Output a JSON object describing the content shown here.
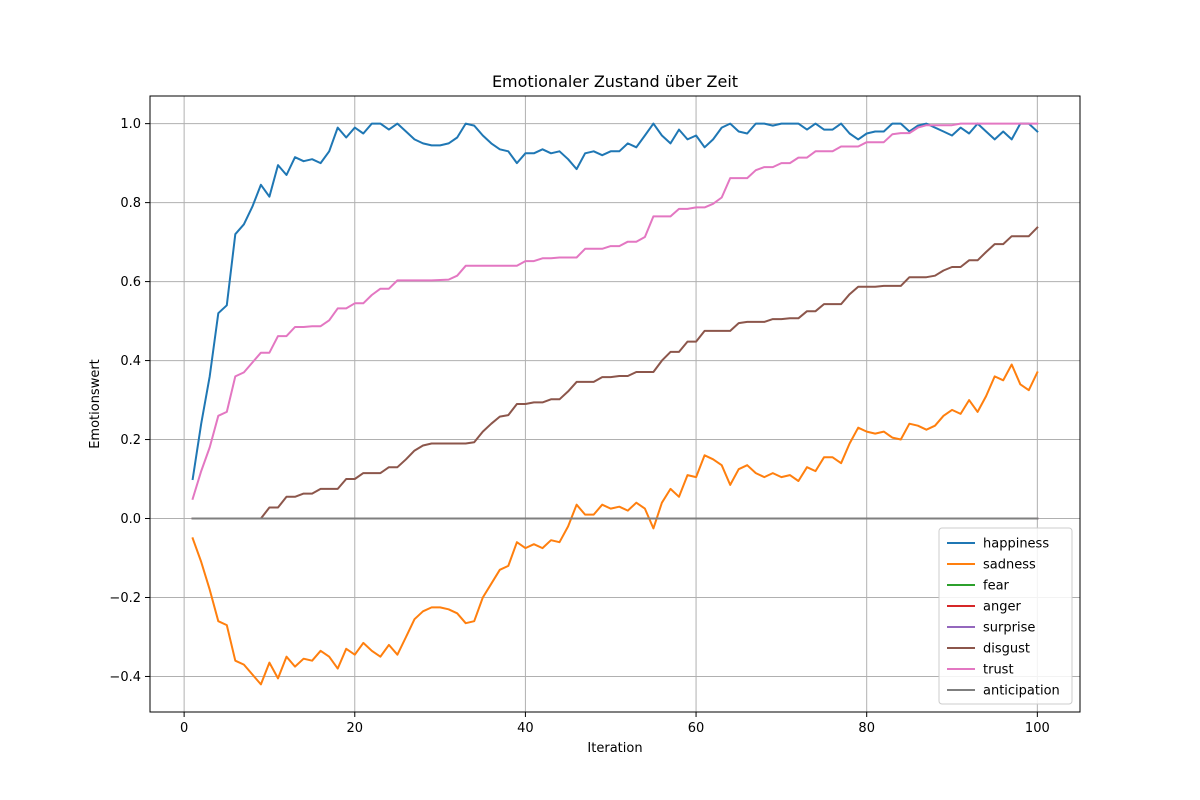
{
  "chart_data": {
    "type": "line",
    "title": "Emotionaler Zustand über Zeit",
    "xlabel": "Iteration",
    "ylabel": "Emotionswert",
    "xlim": [
      -4,
      105
    ],
    "ylim": [
      -0.49,
      1.07
    ],
    "xticks": [
      0,
      20,
      40,
      60,
      80,
      100
    ],
    "yticks": [
      -0.4,
      -0.2,
      0.0,
      0.2,
      0.4,
      0.6,
      0.8,
      1.0
    ],
    "xtick_labels": [
      "0",
      "20",
      "40",
      "60",
      "80",
      "100"
    ],
    "ytick_labels": [
      "−0.4",
      "−0.2",
      "0.0",
      "0.2",
      "0.4",
      "0.6",
      "0.8",
      "1.0"
    ],
    "grid": true,
    "legend_position": "lower-right",
    "series": [
      {
        "name": "happiness",
        "color": "#1f77b4",
        "values": [
          0.1,
          0.24,
          0.36,
          0.52,
          0.54,
          0.72,
          0.745,
          0.79,
          0.845,
          0.815,
          0.895,
          0.87,
          0.915,
          0.905,
          0.91,
          0.9,
          0.93,
          0.99,
          0.965,
          0.99,
          0.975,
          1.0,
          1.0,
          0.985,
          1.0,
          0.98,
          0.96,
          0.95,
          0.945,
          0.945,
          0.95,
          0.965,
          1.0,
          0.995,
          0.97,
          0.95,
          0.935,
          0.93,
          0.9,
          0.925,
          0.925,
          0.935,
          0.925,
          0.93,
          0.91,
          0.885,
          0.925,
          0.93,
          0.92,
          0.93,
          0.93,
          0.95,
          0.94,
          0.97,
          1.0,
          0.97,
          0.95,
          0.985,
          0.96,
          0.97,
          0.94,
          0.96,
          0.99,
          1.0,
          0.98,
          0.975,
          1.0,
          1.0,
          0.995,
          1.0,
          1.0,
          1.0,
          0.985,
          1.0,
          0.985,
          0.985,
          1.0,
          0.975,
          0.96,
          0.975,
          0.98,
          0.98,
          1.0,
          1.0,
          0.98,
          0.995,
          1.0,
          0.99,
          0.98,
          0.97,
          0.99,
          0.975,
          1.0,
          0.98,
          0.96,
          0.98,
          0.96,
          1.0,
          1.0,
          0.98
        ]
      },
      {
        "name": "sadness",
        "color": "#ff7f0e",
        "values": [
          -0.05,
          -0.11,
          -0.18,
          -0.26,
          -0.27,
          -0.36,
          -0.37,
          -0.395,
          -0.42,
          -0.365,
          -0.405,
          -0.35,
          -0.375,
          -0.355,
          -0.36,
          -0.335,
          -0.35,
          -0.38,
          -0.33,
          -0.345,
          -0.315,
          -0.335,
          -0.35,
          -0.32,
          -0.345,
          -0.3,
          -0.255,
          -0.235,
          -0.225,
          -0.225,
          -0.23,
          -0.24,
          -0.265,
          -0.26,
          -0.2,
          -0.165,
          -0.13,
          -0.12,
          -0.06,
          -0.075,
          -0.065,
          -0.075,
          -0.055,
          -0.06,
          -0.02,
          0.035,
          0.01,
          0.01,
          0.035,
          0.025,
          0.03,
          0.02,
          0.04,
          0.025,
          -0.025,
          0.04,
          0.075,
          0.055,
          0.11,
          0.105,
          0.16,
          0.15,
          0.135,
          0.085,
          0.125,
          0.135,
          0.115,
          0.105,
          0.115,
          0.105,
          0.11,
          0.095,
          0.13,
          0.12,
          0.155,
          0.155,
          0.14,
          0.19,
          0.23,
          0.22,
          0.215,
          0.22,
          0.205,
          0.2,
          0.24,
          0.235,
          0.225,
          0.235,
          0.26,
          0.275,
          0.265,
          0.3,
          0.27,
          0.31,
          0.36,
          0.35,
          0.39,
          0.34,
          0.325,
          0.37
        ]
      },
      {
        "name": "fear",
        "color": "#2ca02c",
        "values": [
          0,
          0,
          0,
          0,
          0,
          0,
          0,
          0,
          0,
          0,
          0,
          0,
          0,
          0,
          0,
          0,
          0,
          0,
          0,
          0,
          0,
          0,
          0,
          0,
          0,
          0,
          0,
          0,
          0,
          0,
          0,
          0,
          0,
          0,
          0,
          0,
          0,
          0,
          0,
          0,
          0,
          0,
          0,
          0,
          0,
          0,
          0,
          0,
          0,
          0,
          0,
          0,
          0,
          0,
          0,
          0,
          0,
          0,
          0,
          0,
          0,
          0,
          0,
          0,
          0,
          0,
          0,
          0,
          0,
          0,
          0,
          0,
          0,
          0,
          0,
          0,
          0,
          0,
          0,
          0,
          0,
          0,
          0,
          0,
          0,
          0,
          0,
          0,
          0,
          0,
          0,
          0,
          0,
          0,
          0,
          0,
          0,
          0,
          0,
          0
        ]
      },
      {
        "name": "anger",
        "color": "#d62728",
        "values": [
          0,
          0,
          0,
          0,
          0,
          0,
          0,
          0,
          0,
          0,
          0,
          0,
          0,
          0,
          0,
          0,
          0,
          0,
          0,
          0,
          0,
          0,
          0,
          0,
          0,
          0,
          0,
          0,
          0,
          0,
          0,
          0,
          0,
          0,
          0,
          0,
          0,
          0,
          0,
          0,
          0,
          0,
          0,
          0,
          0,
          0,
          0,
          0,
          0,
          0,
          0,
          0,
          0,
          0,
          0,
          0,
          0,
          0,
          0,
          0,
          0,
          0,
          0,
          0,
          0,
          0,
          0,
          0,
          0,
          0,
          0,
          0,
          0,
          0,
          0,
          0,
          0,
          0,
          0,
          0,
          0,
          0,
          0,
          0,
          0,
          0,
          0,
          0,
          0,
          0,
          0,
          0,
          0,
          0,
          0,
          0,
          0,
          0,
          0,
          0
        ]
      },
      {
        "name": "surprise",
        "color": "#9467bd",
        "values": [
          0,
          0,
          0,
          0,
          0,
          0,
          0,
          0,
          0,
          0,
          0,
          0,
          0,
          0,
          0,
          0,
          0,
          0,
          0,
          0,
          0,
          0,
          0,
          0,
          0,
          0,
          0,
          0,
          0,
          0,
          0,
          0,
          0,
          0,
          0,
          0,
          0,
          0,
          0,
          0,
          0,
          0,
          0,
          0,
          0,
          0,
          0,
          0,
          0,
          0,
          0,
          0,
          0,
          0,
          0,
          0,
          0,
          0,
          0,
          0,
          0,
          0,
          0,
          0,
          0,
          0,
          0,
          0,
          0,
          0,
          0,
          0,
          0,
          0,
          0,
          0,
          0,
          0,
          0,
          0,
          0,
          0,
          0,
          0,
          0,
          0,
          0,
          0,
          0,
          0,
          0,
          0,
          0,
          0,
          0,
          0,
          0,
          0,
          0,
          0
        ]
      },
      {
        "name": "disgust",
        "color": "#8c564b",
        "values": [
          0,
          0,
          0,
          0,
          0,
          0,
          0,
          0,
          0,
          0.028,
          0.028,
          0.055,
          0.055,
          0.063,
          0.063,
          0.075,
          0.075,
          0.075,
          0.1,
          0.1,
          0.115,
          0.115,
          0.115,
          0.13,
          0.13,
          0.15,
          0.172,
          0.185,
          0.19,
          0.19,
          0.19,
          0.19,
          0.19,
          0.193,
          0.22,
          0.24,
          0.258,
          0.262,
          0.29,
          0.29,
          0.294,
          0.294,
          0.302,
          0.302,
          0.322,
          0.346,
          0.346,
          0.346,
          0.358,
          0.358,
          0.361,
          0.361,
          0.371,
          0.371,
          0.371,
          0.4,
          0.422,
          0.422,
          0.448,
          0.448,
          0.475,
          0.475,
          0.475,
          0.475,
          0.495,
          0.498,
          0.498,
          0.498,
          0.505,
          0.505,
          0.507,
          0.507,
          0.525,
          0.525,
          0.543,
          0.543,
          0.543,
          0.568,
          0.587,
          0.587,
          0.587,
          0.589,
          0.589,
          0.589,
          0.611,
          0.611,
          0.611,
          0.615,
          0.628,
          0.637,
          0.637,
          0.654,
          0.654,
          0.675,
          0.695,
          0.695,
          0.715,
          0.715,
          0.715,
          0.737
        ]
      },
      {
        "name": "trust",
        "color": "#e377c2",
        "values": [
          0.05,
          0.12,
          0.18,
          0.26,
          0.27,
          0.36,
          0.37,
          0.395,
          0.42,
          0.42,
          0.462,
          0.462,
          0.485,
          0.485,
          0.487,
          0.487,
          0.502,
          0.532,
          0.532,
          0.545,
          0.545,
          0.566,
          0.582,
          0.582,
          0.603,
          0.603,
          0.603,
          0.603,
          0.603,
          0.604,
          0.605,
          0.615,
          0.64,
          0.64,
          0.64,
          0.64,
          0.64,
          0.64,
          0.64,
          0.652,
          0.652,
          0.659,
          0.659,
          0.661,
          0.661,
          0.661,
          0.683,
          0.683,
          0.683,
          0.69,
          0.69,
          0.701,
          0.701,
          0.713,
          0.765,
          0.765,
          0.765,
          0.784,
          0.784,
          0.788,
          0.788,
          0.797,
          0.813,
          0.862,
          0.862,
          0.862,
          0.882,
          0.89,
          0.89,
          0.9,
          0.9,
          0.914,
          0.914,
          0.93,
          0.93,
          0.93,
          0.942,
          0.942,
          0.942,
          0.953,
          0.953,
          0.953,
          0.973,
          0.976,
          0.976,
          0.99,
          0.996,
          0.996,
          0.996,
          0.996,
          1.0,
          1.0,
          1.0,
          1.0,
          1.0,
          1.0,
          1.0,
          1.0,
          1.0,
          1.0
        ]
      },
      {
        "name": "anticipation",
        "color": "#7f7f7f",
        "values": [
          0,
          0,
          0,
          0,
          0,
          0,
          0,
          0,
          0,
          0,
          0,
          0,
          0,
          0,
          0,
          0,
          0,
          0,
          0,
          0,
          0,
          0,
          0,
          0,
          0,
          0,
          0,
          0,
          0,
          0,
          0,
          0,
          0,
          0,
          0,
          0,
          0,
          0,
          0,
          0,
          0,
          0,
          0,
          0,
          0,
          0,
          0,
          0,
          0,
          0,
          0,
          0,
          0,
          0,
          0,
          0,
          0,
          0,
          0,
          0,
          0,
          0,
          0,
          0,
          0,
          0,
          0,
          0,
          0,
          0,
          0,
          0,
          0,
          0,
          0,
          0,
          0,
          0,
          0,
          0,
          0,
          0,
          0,
          0,
          0,
          0,
          0,
          0,
          0,
          0,
          0,
          0,
          0,
          0,
          0,
          0,
          0,
          0,
          0,
          0
        ]
      }
    ]
  }
}
